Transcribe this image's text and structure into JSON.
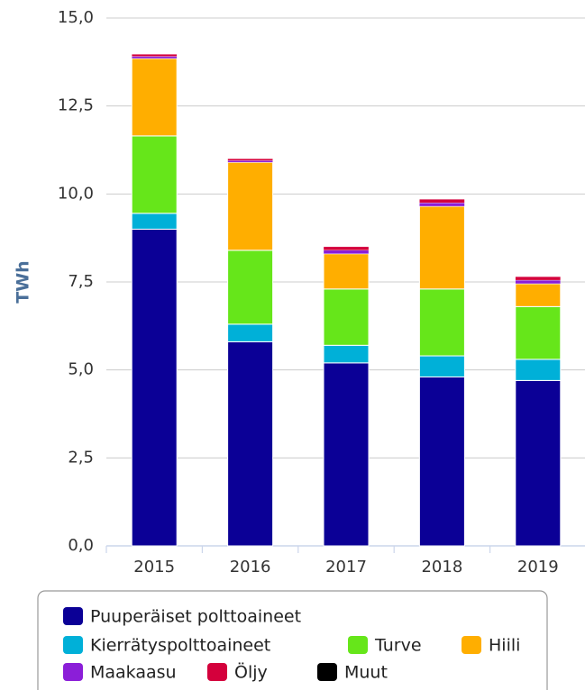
{
  "chart_data": {
    "type": "stacked_bar",
    "y_label": "TWh",
    "categories": [
      "2015",
      "2016",
      "2017",
      "2018",
      "2019"
    ],
    "series": [
      {
        "name": "Puuperäiset polttoaineet",
        "color": "#0b0096",
        "values": [
          9.0,
          5.8,
          5.2,
          4.8,
          4.7
        ]
      },
      {
        "name": "Kierrätyspolttoaineet",
        "color": "#00b0d8",
        "values": [
          0.45,
          0.5,
          0.5,
          0.6,
          0.6
        ]
      },
      {
        "name": "Turve",
        "color": "#66e61a",
        "values": [
          2.2,
          2.1,
          1.6,
          1.9,
          1.5
        ]
      },
      {
        "name": "Hiili",
        "color": "#ffae00",
        "values": [
          2.2,
          2.5,
          1.0,
          2.35,
          0.65
        ]
      },
      {
        "name": "Maakaasu",
        "color": "#8b1ed8",
        "values": [
          0.06,
          0.05,
          0.1,
          0.1,
          0.1
        ]
      },
      {
        "name": "Öljy",
        "color": "#d4003c",
        "values": [
          0.06,
          0.05,
          0.1,
          0.1,
          0.1
        ]
      },
      {
        "name": "Muut",
        "color": "#000000",
        "values": [
          0,
          0,
          0,
          0,
          0
        ]
      }
    ],
    "ylim": [
      0,
      15
    ],
    "yticks": [
      {
        "value": 0,
        "label": "0,0"
      },
      {
        "value": 2.5,
        "label": "2,5"
      },
      {
        "value": 5,
        "label": "5,0"
      },
      {
        "value": 7.5,
        "label": "7,5"
      },
      {
        "value": 10,
        "label": "10,0"
      },
      {
        "value": 12.5,
        "label": "12,5"
      },
      {
        "value": 15,
        "label": "15,0"
      }
    ],
    "grid": true
  }
}
